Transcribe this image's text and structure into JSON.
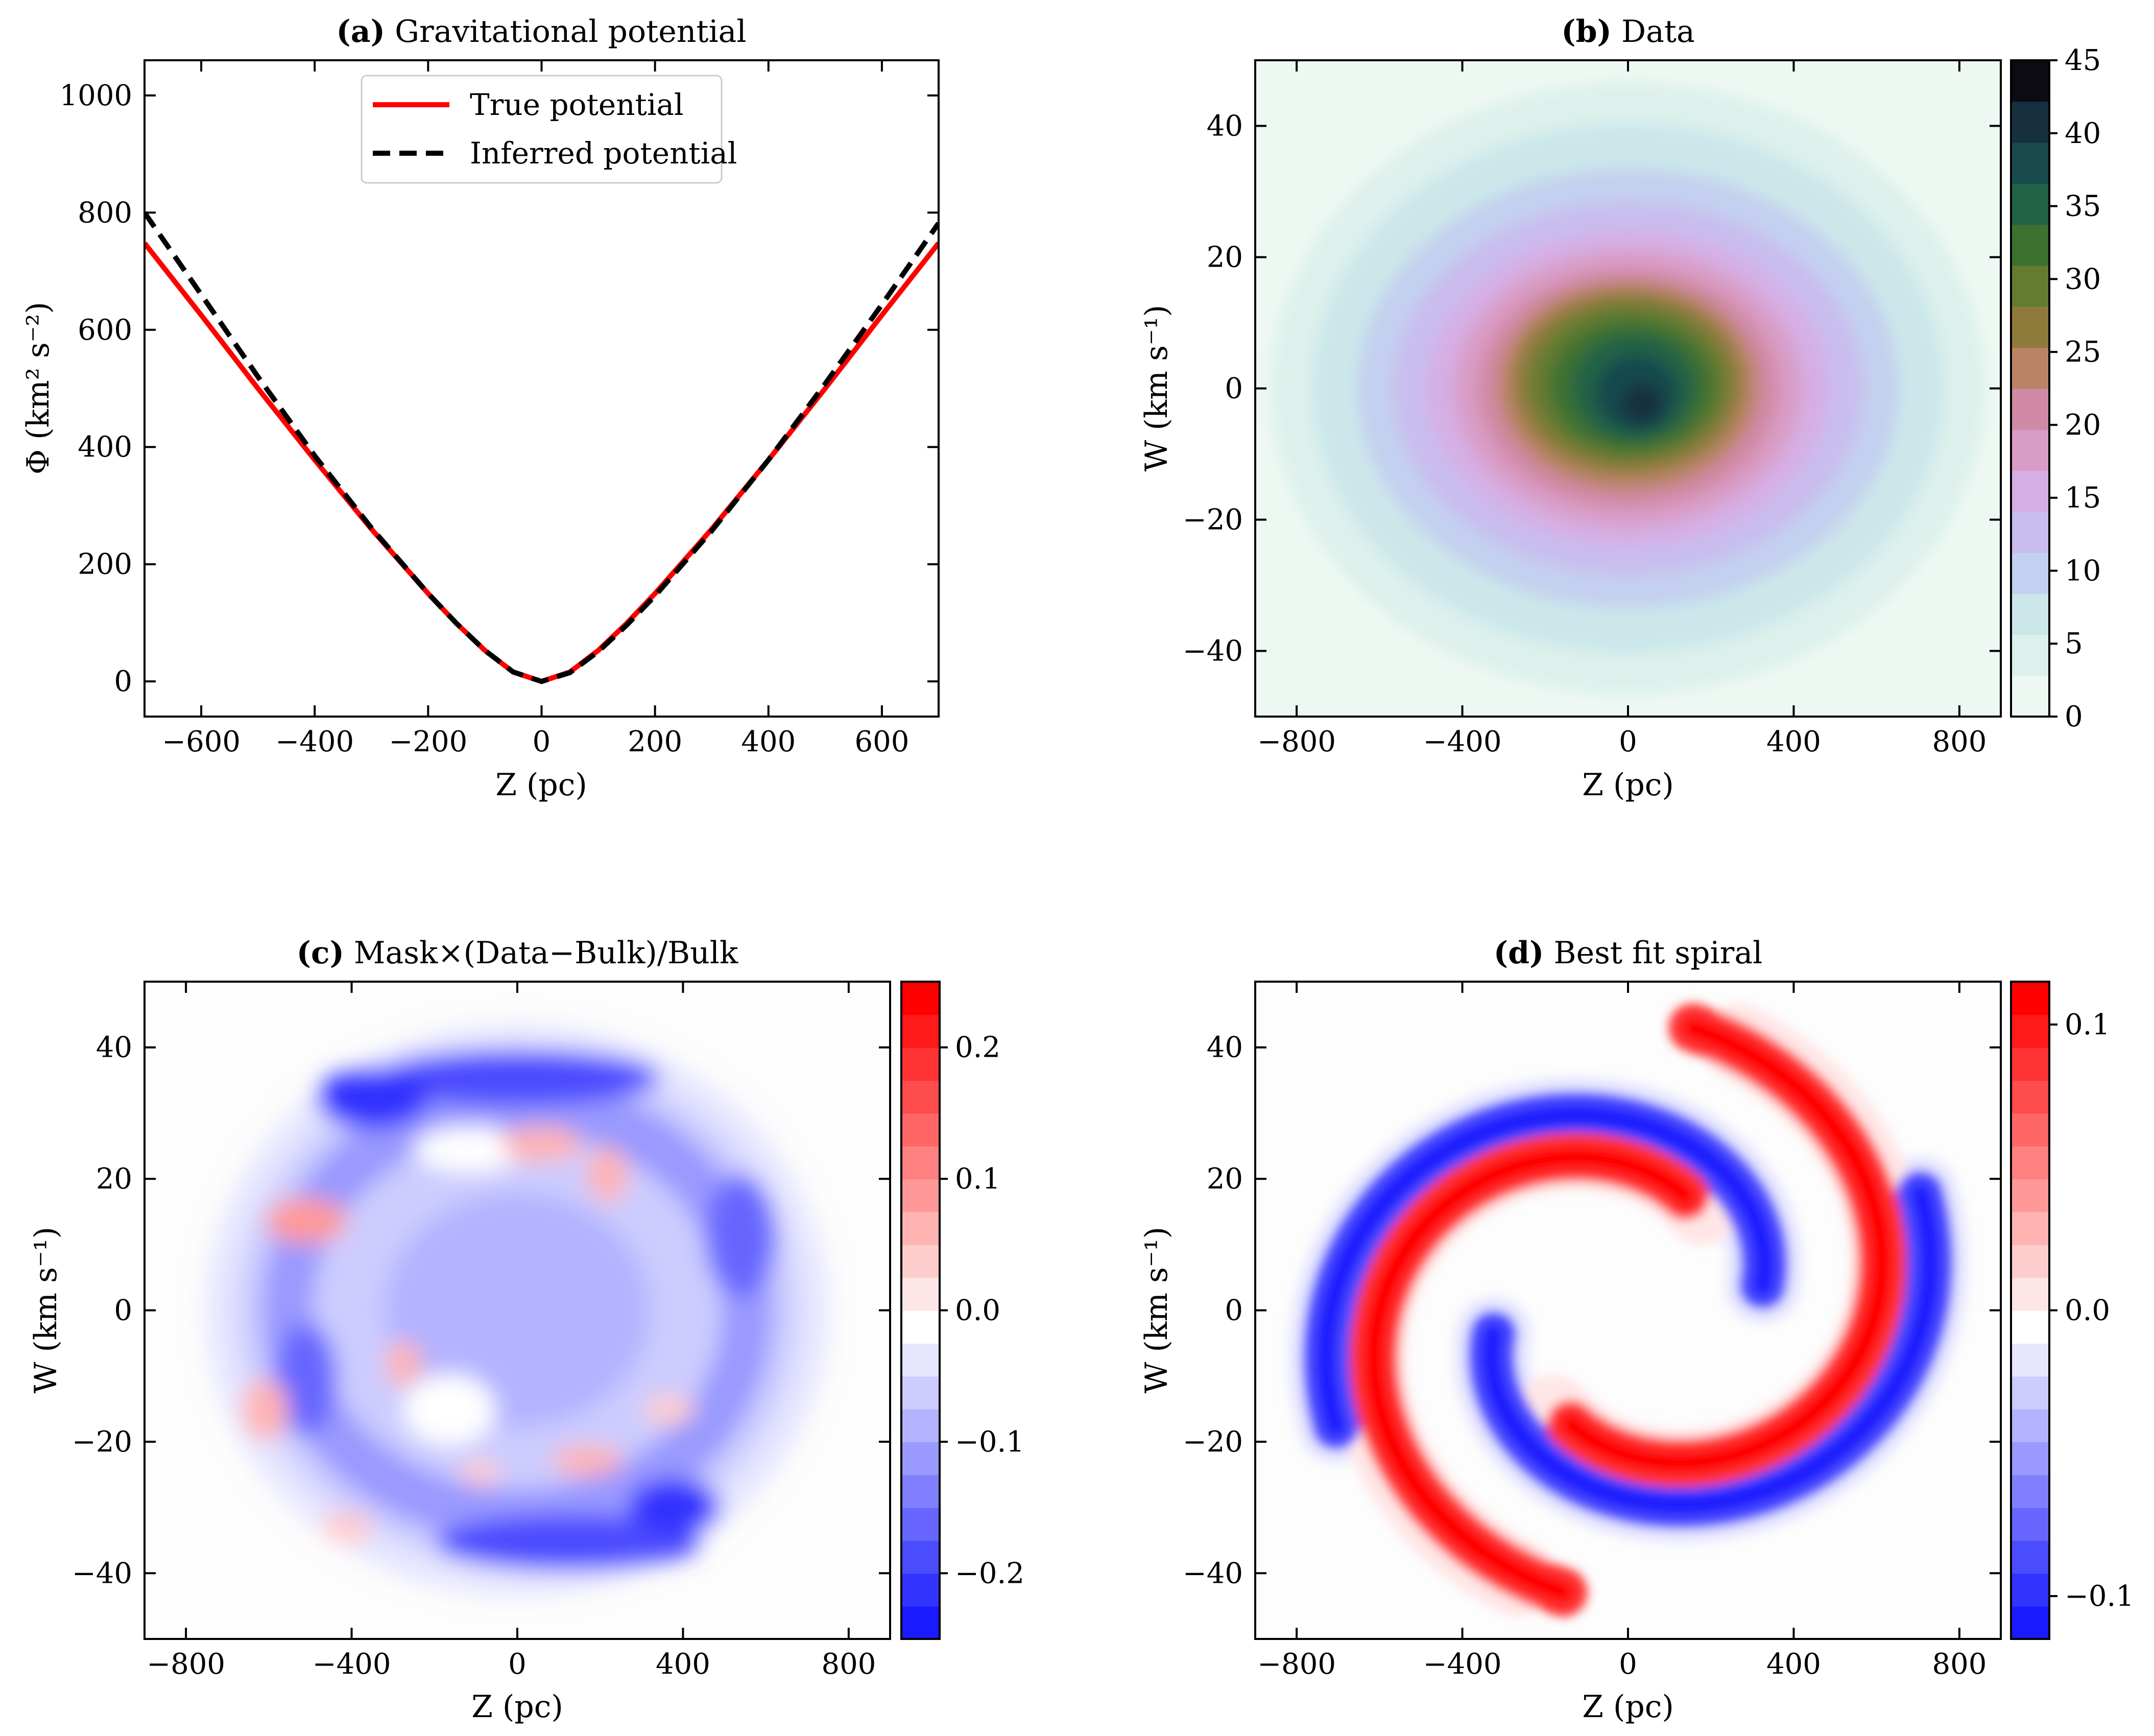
{
  "chart_data": [
    {
      "panel": "a",
      "type": "line",
      "title": "(a) Gravitational potential",
      "title_bold": "(a)",
      "title_rest": " Gravitational potential",
      "xlabel": "Z (pc)",
      "ylabel": "Φ (km² s⁻²)",
      "xlim": [
        -700,
        700
      ],
      "ylim": [
        -60,
        1060
      ],
      "xticks": [
        -600,
        -400,
        -200,
        0,
        200,
        400,
        600
      ],
      "yticks": [
        0,
        200,
        400,
        600,
        800,
        1000
      ],
      "grid": false,
      "legend_position": "top-center",
      "series": [
        {
          "name": "True potential",
          "color": "#ff0000",
          "style": "solid",
          "x": [
            -700,
            -600,
            -500,
            -400,
            -300,
            -200,
            -150,
            -100,
            -50,
            0,
            50,
            100,
            150,
            200,
            300,
            400,
            500,
            600,
            700
          ],
          "y": [
            748,
            625,
            500,
            378,
            260,
            150,
            99,
            53,
            16,
            0,
            16,
            53,
            99,
            150,
            260,
            378,
            500,
            625,
            748
          ]
        },
        {
          "name": "Inferred potential",
          "color": "#000000",
          "style": "dashed",
          "x": [
            -700,
            -600,
            -500,
            -400,
            -300,
            -200,
            -150,
            -100,
            -50,
            0,
            50,
            100,
            150,
            200,
            300,
            400,
            500,
            600,
            700
          ],
          "y": [
            800,
            660,
            520,
            385,
            262,
            150,
            99,
            53,
            16,
            0,
            15,
            51,
            96,
            146,
            257,
            378,
            508,
            643,
            782
          ]
        }
      ]
    },
    {
      "panel": "b",
      "type": "heatmap",
      "title": "(b) Data",
      "title_bold": "(b)",
      "title_rest": " Data",
      "xlabel": "Z (pc)",
      "ylabel": "W (km s⁻¹)",
      "xlim": [
        -900,
        900
      ],
      "ylim": [
        -50,
        50
      ],
      "xticks": [
        -800,
        -400,
        0,
        400,
        800
      ],
      "yticks": [
        -40,
        -20,
        0,
        20,
        40
      ],
      "colorbar": {
        "min": 0,
        "max": 45,
        "ticks": [
          0,
          5,
          10,
          15,
          20,
          25,
          30,
          35,
          40,
          45
        ],
        "tick_labels": [
          "0",
          "5",
          "10",
          "15",
          "20",
          "25",
          "30",
          "35",
          "40",
          "45"
        ],
        "levels": [
          "#eef8f2",
          "#ddf1ec",
          "#cce7ea",
          "#c3d0ef",
          "#c9bdee",
          "#d5afe4",
          "#d99cc6",
          "#d08aa5",
          "#ba8464",
          "#8e7b3c",
          "#657b32",
          "#3c7130",
          "#226246",
          "#194a4e",
          "#173040",
          "#0d0b12"
        ]
      },
      "description_values": {
        "peak": 45,
        "center_z": 0,
        "center_w": 0,
        "sigma_z_pc": 300,
        "sigma_w_kms": 20
      }
    },
    {
      "panel": "c",
      "type": "heatmap",
      "title": "(c) Mask×(Data−Bulk)/Bulk",
      "title_bold": "(c)",
      "title_rest": " Mask×(Data−Bulk)/Bulk",
      "xlabel": "Z (pc)",
      "ylabel": "W (km s⁻¹)",
      "xlim": [
        -900,
        900
      ],
      "ylim": [
        -50,
        50
      ],
      "xticks": [
        -800,
        -400,
        0,
        400,
        800
      ],
      "yticks": [
        -40,
        -20,
        0,
        20,
        40
      ],
      "colorbar": {
        "min": -0.25,
        "max": 0.25,
        "ticks": [
          -0.2,
          -0.1,
          0.0,
          0.1,
          0.2
        ],
        "tick_labels": [
          "−0.2",
          "−0.1",
          "0.0",
          "0.1",
          "0.2"
        ],
        "levels": [
          "#1a1aff",
          "#3333ff",
          "#4c4cff",
          "#6666ff",
          "#8080ff",
          "#9999ff",
          "#b3b3ff",
          "#ccccff",
          "#e6e6ff",
          "#ffffff",
          "#ffe6e6",
          "#ffcccc",
          "#ffb3b3",
          "#ff9999",
          "#ff8080",
          "#ff6666",
          "#ff4c4c",
          "#ff3333",
          "#ff1a1a",
          "#ff0000"
        ]
      }
    },
    {
      "panel": "d",
      "type": "heatmap",
      "title": "(d) Best fit spiral",
      "title_bold": "(d)",
      "title_rest": " Best fit spiral",
      "xlabel": "Z (pc)",
      "ylabel": "W (km s⁻¹)",
      "xlim": [
        -900,
        900
      ],
      "ylim": [
        -50,
        50
      ],
      "xticks": [
        -800,
        -400,
        0,
        400,
        800
      ],
      "yticks": [
        -40,
        -20,
        0,
        20,
        40
      ],
      "colorbar": {
        "min": -0.115,
        "max": 0.115,
        "ticks": [
          -0.1,
          0.0,
          0.1
        ],
        "tick_labels": [
          "−0.1",
          "0.0",
          "0.1"
        ],
        "levels": [
          "#1a1aff",
          "#3333ff",
          "#4c4cff",
          "#6666ff",
          "#8080ff",
          "#9999ff",
          "#b3b3ff",
          "#ccccff",
          "#e6e6ff",
          "#ffffff",
          "#ffe6e6",
          "#ffcccc",
          "#ffb3b3",
          "#ff9999",
          "#ff8080",
          "#ff6666",
          "#ff4c4c",
          "#ff3333",
          "#ff1a1a",
          "#ff0000"
        ]
      }
    }
  ]
}
